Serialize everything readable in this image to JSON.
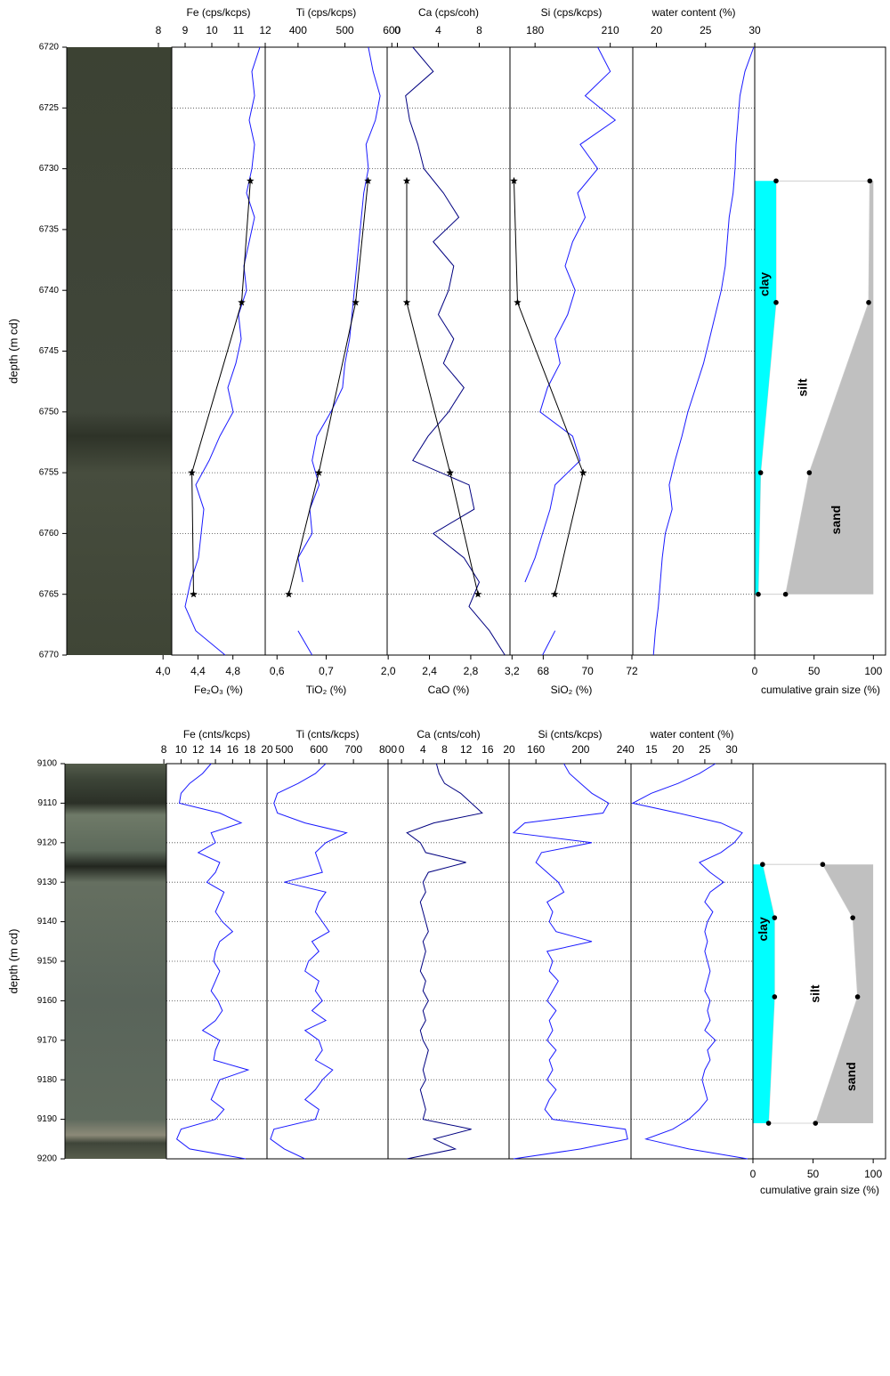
{
  "chart_data": [
    {
      "type": "core-log",
      "ylabel": "depth (m cd)",
      "ylim": [
        6720,
        6770
      ],
      "yticks": [
        6720,
        6725,
        6730,
        6735,
        6740,
        6745,
        6750,
        6755,
        6760,
        6765,
        6770
      ],
      "grid": true,
      "depth": [
        6720,
        6722,
        6724,
        6726,
        6728,
        6730,
        6732,
        6734,
        6736,
        6738,
        6740,
        6742,
        6744,
        6746,
        6748,
        6750,
        6752,
        6754,
        6756,
        6758,
        6760,
        6762,
        6764,
        6766,
        6768,
        6770
      ],
      "panels": [
        {
          "label": "Fe (cps/kcps)",
          "xlim": [
            8.5,
            12
          ],
          "xticks": [
            8,
            9,
            10,
            11,
            12
          ],
          "color": "#1a1aff",
          "values": [
            11.8,
            11.5,
            11.6,
            11.4,
            11.6,
            11.5,
            11.3,
            11.6,
            11.4,
            11.2,
            11.3,
            11.0,
            11.1,
            10.9,
            10.6,
            10.8,
            10.3,
            9.9,
            9.4,
            9.7,
            9.6,
            9.5,
            9.2,
            9.0,
            9.4,
            10.5
          ],
          "oxide": {
            "label": "Fe₂O₃ (%)",
            "xlim": [
              4.1,
              5.17
            ],
            "xticks": [
              {
                "value": 4.0,
                "label": "4,0"
              },
              {
                "value": 4.4,
                "label": "4,4"
              },
              {
                "value": 4.8,
                "label": "4,8"
              }
            ],
            "color": "#000000",
            "depth": [
              6731,
              6741,
              6755,
              6765
            ],
            "values": [
              5.0,
              4.9,
              4.33,
              4.35
            ]
          }
        },
        {
          "label": "Ti (cps/kcps)",
          "xlim": [
            330,
            590
          ],
          "xticks": [
            400,
            500,
            600
          ],
          "color": "#1a1aff",
          "values": [
            550,
            560,
            575,
            565,
            545,
            550,
            540,
            535,
            530,
            525,
            520,
            515,
            510,
            500,
            495,
            470,
            440,
            430,
            445,
            425,
            430,
            400,
            410,
            null,
            400,
            430
          ],
          "oxide": {
            "label": "TiO₂ (%)",
            "xlim": [
              0.576,
              0.824
            ],
            "xticks": [
              {
                "value": 0.6,
                "label": "0,6"
              },
              {
                "value": 0.7,
                "label": "0,7"
              }
            ],
            "color": "#000000",
            "depth": [
              6731,
              6741,
              6755,
              6765
            ],
            "values": [
              0.785,
              0.76,
              0.685,
              0.624
            ]
          }
        },
        {
          "label": "Ca (cps/coh)",
          "xlim": [
            -1,
            11
          ],
          "xticks": [
            0,
            4,
            8
          ],
          "color": "#000080",
          "values": [
            1.5,
            3.5,
            0.8,
            1.2,
            2.0,
            2.6,
            4.5,
            6.0,
            3.5,
            5.5,
            5.0,
            4.0,
            5.5,
            4.5,
            6.5,
            5.0,
            3.0,
            1.5,
            7.0,
            7.5,
            3.5,
            6.5,
            8.0,
            7.0,
            9.0,
            10.5
          ],
          "oxide": {
            "label": "CaO (%)",
            "xlim": [
              1.99,
              3.18
            ],
            "xticks": [
              {
                "value": 2.0,
                "label": "2,0"
              },
              {
                "value": 2.4,
                "label": "2,4"
              },
              {
                "value": 2.8,
                "label": "2,8"
              },
              {
                "value": 3.2,
                "label": "3,2"
              }
            ],
            "color": "#000000",
            "depth": [
              6731,
              6741,
              6755,
              6765
            ],
            "values": [
              2.18,
              2.18,
              2.6,
              2.87
            ]
          }
        },
        {
          "label": "Si (cps/kcps)",
          "xlim": [
            170,
            219
          ],
          "xticks": [
            180,
            210
          ],
          "color": "#1a1aff",
          "values": [
            205,
            210,
            200,
            212,
            198,
            205,
            197,
            200,
            195,
            192,
            196,
            193,
            188,
            190,
            185,
            182,
            195,
            198,
            188,
            186,
            183,
            180,
            176,
            null,
            188,
            183
          ],
          "oxide": {
            "label": "SiO₂ (%)",
            "xlim": [
              66.5,
              72.04
            ],
            "xticks": [
              68,
              70,
              72
            ],
            "color": "#000000",
            "depth": [
              6731,
              6741,
              6755,
              6765
            ],
            "values": [
              66.68,
              66.84,
              69.8,
              68.52
            ]
          }
        },
        {
          "label": "water content (%)",
          "xlim": [
            17.6,
            30
          ],
          "xticks": [
            20,
            25,
            30
          ],
          "color": "#1a1aff",
          "values": [
            29.9,
            29.0,
            28.5,
            28.3,
            28.1,
            28.0,
            27.8,
            27.4,
            27.2,
            27.0,
            26.6,
            26.0,
            25.4,
            24.8,
            24.0,
            23.2,
            22.6,
            21.9,
            21.3,
            21.6,
            20.9,
            20.6,
            20.4,
            20.2,
            19.9,
            19.7
          ]
        }
      ],
      "grain_size": {
        "label": "cumulative grain size (%)",
        "xlim": [
          0,
          111
        ],
        "xticks": [
          0,
          50,
          100
        ],
        "depth": [
          6731,
          6741,
          6755,
          6765
        ],
        "series": [
          {
            "name": "clay",
            "color": "#00ffff",
            "values": [
              18,
              18,
              5,
              3
            ]
          },
          {
            "name": "silt",
            "color": "#ffffff",
            "values": [
              97,
              96,
              46,
              26
            ]
          },
          {
            "name": "sand",
            "color": "#c0c0c0",
            "values": [
              100,
              100,
              100,
              100
            ]
          }
        ]
      }
    },
    {
      "type": "core-log",
      "ylabel": "depth (m cd)",
      "ylim": [
        9100,
        9200
      ],
      "yticks": [
        9100,
        9110,
        9120,
        9130,
        9140,
        9150,
        9160,
        9170,
        9180,
        9190,
        9200
      ],
      "grid": true,
      "depth": [
        9100,
        9102.5,
        9105,
        9107.5,
        9110,
        9112.5,
        9115,
        9117.5,
        9120,
        9122.5,
        9125,
        9127.5,
        9130,
        9132.5,
        9135,
        9137.5,
        9140,
        9142.5,
        9145,
        9147.5,
        9150,
        9152.5,
        9155,
        9157.5,
        9160,
        9162.5,
        9165,
        9167.5,
        9170,
        9172.5,
        9175,
        9177.5,
        9180,
        9182.5,
        9185,
        9187.5,
        9190,
        9192.5,
        9195,
        9197.5,
        9200
      ],
      "panels": [
        {
          "label": "Fe (cnts/kcps)",
          "xlim": [
            8.3,
            20
          ],
          "xticks": [
            8,
            10,
            12,
            14,
            16,
            18,
            20
          ],
          "color": "#1a1aff",
          "values": [
            13.5,
            12.5,
            11.0,
            10.0,
            9.8,
            14.5,
            17.0,
            13.5,
            14.0,
            12.0,
            14.5,
            14.0,
            13.0,
            15.0,
            14.5,
            14.0,
            14.8,
            16.0,
            14.5,
            14.0,
            13.8,
            14.5,
            14.0,
            13.5,
            14.3,
            14.8,
            14.0,
            12.5,
            14.5,
            14.0,
            13.8,
            17.8,
            14.5,
            14.0,
            13.5,
            15.0,
            14.0,
            10.0,
            9.5,
            11.0,
            17.5
          ]
        },
        {
          "label": "Ti (cnts/kcps)",
          "xlim": [
            450,
            800
          ],
          "xticks": [
            500,
            600,
            700,
            800
          ],
          "color": "#1a1aff",
          "values": [
            620,
            590,
            540,
            480,
            470,
            480,
            560,
            680,
            620,
            590,
            600,
            610,
            500,
            620,
            600,
            590,
            610,
            630,
            580,
            600,
            570,
            560,
            600,
            590,
            610,
            580,
            620,
            560,
            600,
            610,
            590,
            640,
            610,
            590,
            560,
            600,
            590,
            470,
            460,
            500,
            560
          ]
        },
        {
          "label": "Ca (cnts/coh)",
          "xlim": [
            -2.5,
            20
          ],
          "xticks": [
            0,
            4,
            8,
            12,
            16,
            20
          ],
          "color": "#000080",
          "values": [
            6.5,
            7.0,
            8.0,
            11.0,
            13.0,
            15.0,
            6.0,
            1.0,
            3.5,
            4.5,
            12.0,
            5.0,
            4.0,
            4.5,
            3.5,
            4.0,
            4.5,
            5.0,
            4.0,
            4.5,
            4.0,
            3.5,
            4.5,
            4.0,
            5.0,
            4.0,
            4.5,
            3.5,
            4.0,
            5.0,
            4.5,
            4.0,
            4.5,
            3.5,
            4.0,
            4.5,
            4.0,
            13.0,
            6.0,
            10.0,
            1.0
          ]
        },
        {
          "label": "Si (cnts/kcps)",
          "xlim": [
            136,
            245
          ],
          "xticks": [
            160,
            200,
            240
          ],
          "color": "#1a1aff",
          "values": [
            185,
            190,
            200,
            210,
            225,
            220,
            150,
            140,
            210,
            165,
            160,
            170,
            180,
            185,
            170,
            175,
            172,
            178,
            210,
            170,
            175,
            172,
            180,
            175,
            170,
            178,
            172,
            175,
            170,
            178,
            172,
            175,
            170,
            178,
            172,
            168,
            175,
            240,
            242,
            200,
            140
          ]
        },
        {
          "label": "water content (%)",
          "xlim": [
            11.2,
            34
          ],
          "xticks": [
            15,
            20,
            25,
            30
          ],
          "color": "#1a1aff",
          "values": [
            27,
            24,
            20,
            15,
            11.5,
            20,
            28,
            32,
            30.5,
            28,
            24,
            26,
            28.5,
            26,
            25,
            26.5,
            25.5,
            25,
            25.5,
            25,
            25.5,
            26,
            25.5,
            25,
            26,
            25.5,
            26,
            25,
            27,
            25.5,
            26,
            25,
            24.5,
            25,
            25.5,
            24,
            22,
            19,
            14,
            22,
            33
          ]
        }
      ],
      "grain_size": {
        "label": "cumulative grain size (%)",
        "xlim": [
          0,
          111
        ],
        "xticks": [
          0,
          50,
          100
        ],
        "depth": [
          9125.5,
          9139,
          9159,
          9191
        ],
        "series": [
          {
            "name": "clay",
            "color": "#00ffff",
            "values": [
              8,
              18,
              18,
              13
            ]
          },
          {
            "name": "silt",
            "color": "#ffffff",
            "values": [
              58,
              83,
              87,
              52
            ]
          },
          {
            "name": "sand",
            "color": "#c0c0c0",
            "values": [
              100,
              100,
              100,
              100
            ]
          }
        ]
      }
    }
  ]
}
